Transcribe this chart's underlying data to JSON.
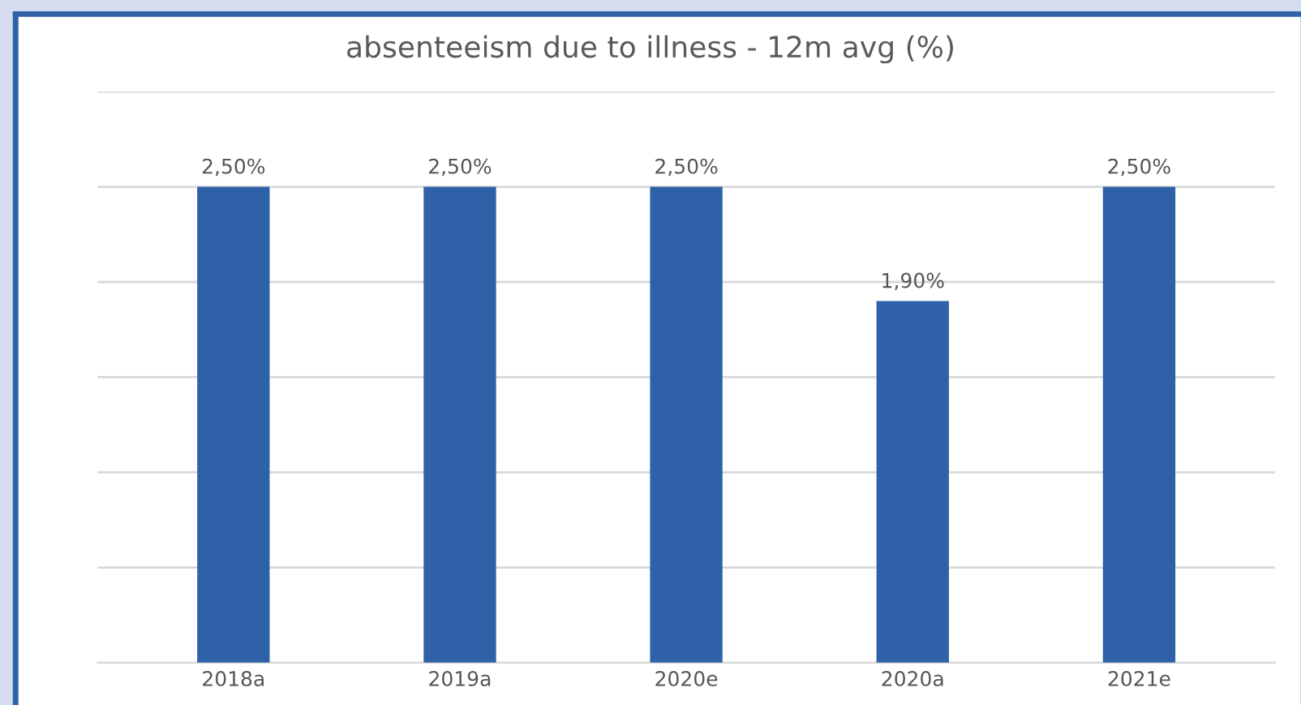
{
  "chart_data": {
    "type": "bar",
    "title": "absenteeism due to illness - 12m avg (%)",
    "categories": [
      "2018a",
      "2019a",
      "2020e",
      "2020a",
      "2021e"
    ],
    "values": [
      2.5,
      2.5,
      2.5,
      1.9,
      2.5
    ],
    "value_labels": [
      "2,50%",
      "2,50%",
      "2,50%",
      "1,90%",
      "2,50%"
    ],
    "color": "#2e61a8",
    "ylim": [
      0,
      3
    ],
    "yticks": [
      {
        "value": 0,
        "label": null
      },
      {
        "value": 0.5,
        "label": null
      },
      {
        "value": 1,
        "label": null
      },
      {
        "value": 1.5,
        "label": null
      },
      {
        "value": 2,
        "label": null
      },
      {
        "value": 2.5,
        "label": null
      },
      {
        "value": 3,
        "label": null
      }
    ],
    "grid": "y",
    "tick_labels": "x"
  }
}
